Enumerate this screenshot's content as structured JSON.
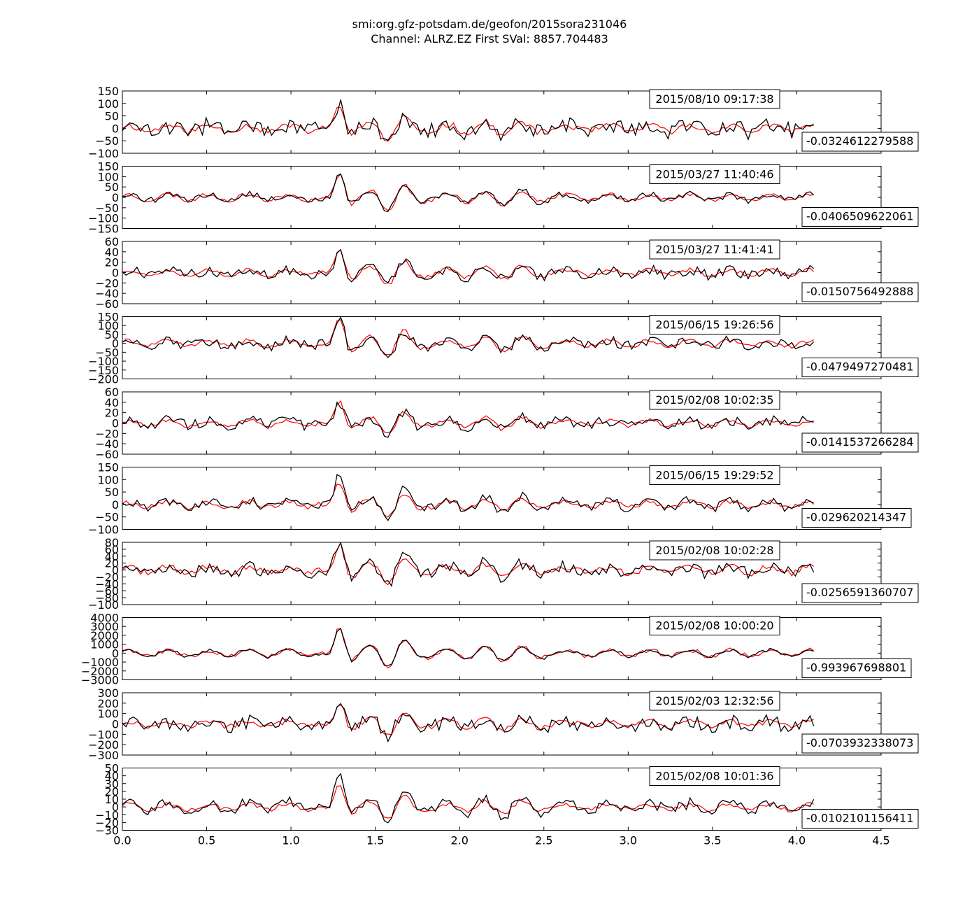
{
  "title_lines": [
    "smi:org.gfz-potsdam.de/geofon/2015sora231046",
    "Channel: ALRZ.EZ First SVal: 8857.704483"
  ],
  "chart_data": {
    "type": "line",
    "xlim": [
      0.0,
      4.5
    ],
    "x_ticks": [
      "0.0",
      "0.5",
      "1.0",
      "1.5",
      "2.0",
      "2.5",
      "3.0",
      "3.5",
      "4.0",
      "4.5"
    ],
    "grid": false,
    "series_colors": {
      "observed": "#000000",
      "reference": "#ff0000"
    },
    "panels": [
      {
        "date_label": "2015/08/10 09:17:38",
        "value_label": "-0.0324612279588",
        "ylim": [
          -100,
          150
        ],
        "y_ticks": [
          "150",
          "100",
          "50",
          "0",
          "−50",
          "−100"
        ],
        "ref_amp": 100,
        "obs_amp": 100,
        "noise": 28,
        "ref_noise": 12,
        "seed": 11
      },
      {
        "date_label": "2015/03/27 11:40:46",
        "value_label": "-0.0406509622061",
        "ylim": [
          -150,
          150
        ],
        "y_ticks": [
          "150",
          "100",
          "50",
          "0",
          "−50",
          "−100",
          "−150"
        ],
        "ref_amp": 120,
        "obs_amp": 125,
        "noise": 12,
        "ref_noise": 10,
        "seed": 23
      },
      {
        "date_label": "2015/03/27 11:41:41",
        "value_label": "-0.0150756492888",
        "ylim": [
          -60,
          60
        ],
        "y_ticks": [
          "60",
          "40",
          "20",
          "0",
          "−20",
          "−40",
          "−60"
        ],
        "ref_amp": 45,
        "obs_amp": 43,
        "noise": 8,
        "ref_noise": 4,
        "seed": 37
      },
      {
        "date_label": "2015/06/15 19:26:56",
        "value_label": "-0.0479497270481",
        "ylim": [
          -200,
          150
        ],
        "y_ticks": [
          "150",
          "100",
          "50",
          "0",
          "−50",
          "−100",
          "−150",
          "−200"
        ],
        "ref_amp": 140,
        "obs_amp": 135,
        "noise": 25,
        "ref_noise": 12,
        "seed": 41
      },
      {
        "date_label": "2015/02/08 10:02:35",
        "value_label": "-0.0141537266284",
        "ylim": [
          -60,
          60
        ],
        "y_ticks": [
          "60",
          "40",
          "20",
          "0",
          "−20",
          "−40",
          "−60"
        ],
        "ref_amp": 42,
        "obs_amp": 40,
        "noise": 9,
        "ref_noise": 4,
        "seed": 53
      },
      {
        "date_label": "2015/06/15 19:29:52",
        "value_label": "-0.029620214347",
        "ylim": [
          -100,
          150
        ],
        "y_ticks": [
          "150",
          "100",
          "50",
          "0",
          "−50",
          "−100"
        ],
        "ref_amp": 90,
        "obs_amp": 120,
        "noise": 15,
        "ref_noise": 10,
        "seed": 67
      },
      {
        "date_label": "2015/02/08 10:02:28",
        "value_label": "-0.0256591360707",
        "ylim": [
          -100,
          80
        ],
        "y_ticks": [
          "80",
          "60",
          "40",
          "20",
          "0",
          "−20",
          "−40",
          "−60",
          "−80",
          "−100"
        ],
        "ref_amp": 75,
        "obs_amp": 80,
        "noise": 14,
        "ref_noise": 9,
        "seed": 71
      },
      {
        "date_label": "2015/02/08 10:00:20",
        "value_label": "-0.993967698801",
        "ylim": [
          -3000,
          4000
        ],
        "y_ticks": [
          "4000",
          "3000",
          "2000",
          "1000",
          "0",
          "−1000",
          "−2000",
          "−3000"
        ],
        "ref_amp": 3000,
        "obs_amp": 3000,
        "noise": 120,
        "ref_noise": 250,
        "seed": 83
      },
      {
        "date_label": "2015/02/03 12:32:56",
        "value_label": "-0.0703932338073",
        "ylim": [
          -300,
          300
        ],
        "y_ticks": [
          "300",
          "200",
          "100",
          "0",
          "−100",
          "−200",
          "−300"
        ],
        "ref_amp": 210,
        "obs_amp": 200,
        "noise": 55,
        "ref_noise": 25,
        "seed": 97
      },
      {
        "date_label": "2015/02/08 10:01:36",
        "value_label": "-0.0102101156411",
        "ylim": [
          -30,
          50
        ],
        "y_ticks": [
          "50",
          "40",
          "30",
          "20",
          "10",
          "0",
          "−10",
          "−20",
          "−30"
        ],
        "ref_amp": 30,
        "obs_amp": 43,
        "noise": 6,
        "ref_noise": 3,
        "seed": 101
      }
    ]
  }
}
